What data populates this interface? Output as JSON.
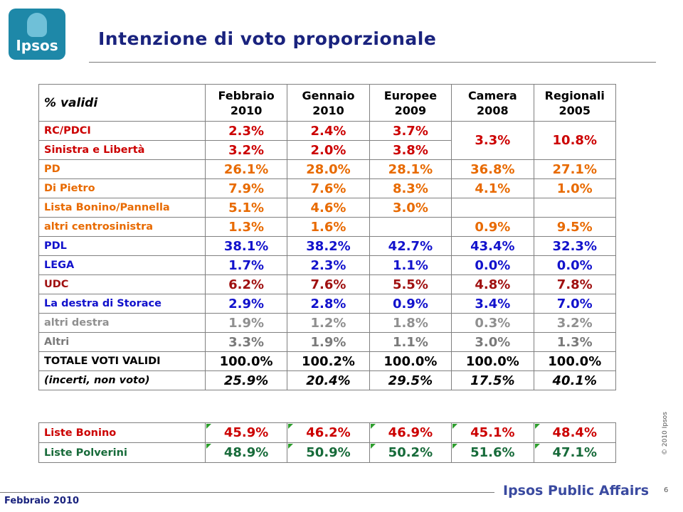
{
  "logo": {
    "text": "Ipsos"
  },
  "title": "Intenzione di voto proporzionale",
  "table": {
    "header": {
      "label": "% validi",
      "columns": [
        [
          "Febbraio",
          "2010"
        ],
        [
          "Gennaio",
          "2010"
        ],
        [
          "Europee",
          "2009"
        ],
        [
          "Camera",
          "2008"
        ],
        [
          "Regionali",
          "2005"
        ]
      ]
    },
    "rows": [
      {
        "label": "RC/PDCI",
        "values": [
          "2.3%",
          "2.4%",
          "3.7%"
        ],
        "merged": [
          "3.3%",
          "10.8%"
        ],
        "color": "#cc0000"
      },
      {
        "label": "Sinistra e Libertà",
        "values": [
          "3.2%",
          "2.0%",
          "3.8%"
        ],
        "color": "#cc0000"
      },
      {
        "label": "PD",
        "values": [
          "26.1%",
          "28.0%",
          "28.1%",
          "36.8%",
          "27.1%"
        ],
        "color": "#e86a00"
      },
      {
        "label": "Di Pietro",
        "values": [
          "7.9%",
          "7.6%",
          "8.3%",
          "4.1%",
          "1.0%"
        ],
        "color": "#e86a00"
      },
      {
        "label": "Lista Bonino/Pannella",
        "values": [
          "5.1%",
          "4.6%",
          "3.0%",
          "",
          ""
        ],
        "color": "#e86a00"
      },
      {
        "label": "altri centrosinistra",
        "values": [
          "1.3%",
          "1.6%",
          "",
          "0.9%",
          "9.5%"
        ],
        "color": "#e86a00"
      },
      {
        "label": "PDL",
        "values": [
          "38.1%",
          "38.2%",
          "42.7%",
          "43.4%",
          "32.3%"
        ],
        "color": "#1212cc"
      },
      {
        "label": "LEGA",
        "values": [
          "1.7%",
          "2.3%",
          "1.1%",
          "0.0%",
          "0.0%"
        ],
        "color": "#1212cc"
      },
      {
        "label": "UDC",
        "values": [
          "6.2%",
          "7.6%",
          "5.5%",
          "4.8%",
          "7.8%"
        ],
        "color": "#a01010"
      },
      {
        "label": "La destra di Storace",
        "values": [
          "2.9%",
          "2.8%",
          "0.9%",
          "3.4%",
          "7.0%"
        ],
        "color": "#1212cc"
      },
      {
        "label": "altri destra",
        "values": [
          "1.9%",
          "1.2%",
          "1.8%",
          "0.3%",
          "3.2%"
        ],
        "color": "#909090"
      },
      {
        "label": "Altri",
        "values": [
          "3.3%",
          "1.9%",
          "1.1%",
          "3.0%",
          "1.3%"
        ],
        "color": "#7a7a7a"
      },
      {
        "label": "TOTALE VOTI VALIDI",
        "values": [
          "100.0%",
          "100.2%",
          "100.0%",
          "100.0%",
          "100.0%"
        ],
        "color": "#000000"
      },
      {
        "label": "(incerti, non voto)",
        "values": [
          "25.9%",
          "20.4%",
          "29.5%",
          "17.5%",
          "40.1%"
        ],
        "color": "#000000"
      }
    ]
  },
  "table2": {
    "rows": [
      {
        "label": "Liste Bonino",
        "values": [
          "45.9%",
          "46.2%",
          "46.9%",
          "45.1%",
          "48.4%"
        ],
        "color": "#cc0000"
      },
      {
        "label": "Liste Polverini",
        "values": [
          "48.9%",
          "50.9%",
          "50.2%",
          "51.6%",
          "47.1%"
        ],
        "color": "#176b3a"
      }
    ]
  },
  "footer": {
    "copyright": "© 2010 Ipsos",
    "page": "6",
    "date": "Febbraio  2010",
    "brand": "Ipsos Public Affairs"
  }
}
